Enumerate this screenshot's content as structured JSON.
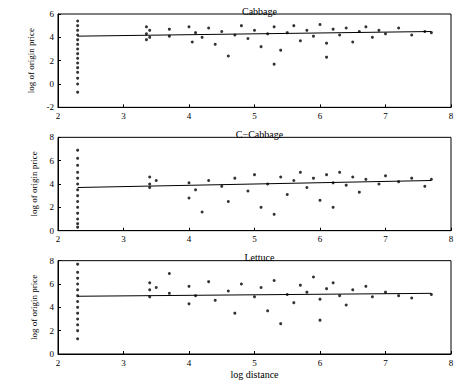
{
  "chart_data": [
    {
      "type": "scatter",
      "title": "Cabbage",
      "ylabel": "log of origin price",
      "xlim": [
        2,
        8
      ],
      "xticks": [
        2,
        3,
        4,
        5,
        6,
        7,
        8
      ],
      "ylim": [
        -2,
        6
      ],
      "yticks": [
        -2,
        0,
        2,
        4,
        6
      ],
      "grid": false,
      "series": [
        {
          "type": "scatter",
          "color": "#000000",
          "marker": "dot",
          "x": [
            2.3,
            2.3,
            2.3,
            2.3,
            2.3,
            2.3,
            2.3,
            2.3,
            2.3,
            2.3,
            2.3,
            2.3,
            2.3,
            2.3,
            2.3,
            3.35,
            3.35,
            3.35,
            3.4,
            3.4,
            3.7,
            3.7,
            4.0,
            4.05,
            4.1,
            4.2,
            4.3,
            4.4,
            4.5,
            4.6,
            4.7,
            4.8,
            4.9,
            5.0,
            5.1,
            5.2,
            5.3,
            5.4,
            5.5,
            5.6,
            5.7,
            5.8,
            5.9,
            6.0,
            6.1,
            6.2,
            6.3,
            6.4,
            6.5,
            6.6,
            6.7,
            6.8,
            6.9,
            7.0,
            7.2,
            7.4,
            7.6,
            7.7,
            5.3,
            6.1
          ],
          "values": [
            5.4,
            5.0,
            4.6,
            4.2,
            3.8,
            3.4,
            3.0,
            2.6,
            2.2,
            1.8,
            1.4,
            1.0,
            0.5,
            0.0,
            -0.7,
            4.9,
            4.3,
            3.8,
            4.6,
            4.0,
            4.7,
            4.1,
            4.9,
            3.6,
            4.4,
            4.0,
            4.8,
            3.4,
            4.5,
            2.4,
            4.2,
            5.0,
            3.9,
            4.6,
            3.2,
            4.3,
            4.9,
            2.9,
            4.4,
            5.0,
            3.7,
            4.6,
            4.1,
            5.1,
            3.5,
            4.7,
            4.2,
            4.8,
            3.6,
            4.5,
            4.9,
            4.0,
            4.6,
            4.3,
            4.8,
            4.2,
            4.5,
            4.4,
            1.7,
            2.3
          ]
        },
        {
          "type": "line",
          "color": "#000000",
          "line_style": "solid",
          "x": [
            2.3,
            7.7
          ],
          "values": [
            4.1,
            4.5
          ]
        }
      ]
    },
    {
      "type": "scatter",
      "title": "C−Cabbage",
      "ylabel": "log of origin price",
      "xlim": [
        2,
        8
      ],
      "xticks": [
        2,
        3,
        4,
        5,
        6,
        7,
        8
      ],
      "ylim": [
        0,
        8
      ],
      "yticks": [
        0,
        2,
        4,
        6,
        8
      ],
      "grid": false,
      "series": [
        {
          "type": "scatter",
          "color": "#000000",
          "marker": "dot",
          "x": [
            2.3,
            2.3,
            2.3,
            2.3,
            2.3,
            2.3,
            2.3,
            2.3,
            2.3,
            2.3,
            2.3,
            2.3,
            2.3,
            2.3,
            3.4,
            3.4,
            3.4,
            3.5,
            4.0,
            4.0,
            4.1,
            4.2,
            4.3,
            4.5,
            4.6,
            4.7,
            4.9,
            5.0,
            5.1,
            5.2,
            5.4,
            5.5,
            5.6,
            5.7,
            5.8,
            5.9,
            6.0,
            6.1,
            6.2,
            6.3,
            6.4,
            6.5,
            6.6,
            6.7,
            6.9,
            7.0,
            7.2,
            7.4,
            7.6,
            7.7,
            5.3,
            6.2
          ],
          "values": [
            6.9,
            6.2,
            5.6,
            5.0,
            4.5,
            4.0,
            3.5,
            3.0,
            2.5,
            2.0,
            1.5,
            1.0,
            0.6,
            0.3,
            4.6,
            4.0,
            3.7,
            4.3,
            2.8,
            4.1,
            3.5,
            1.6,
            4.3,
            3.8,
            2.5,
            4.5,
            3.4,
            4.8,
            2.0,
            4.0,
            4.6,
            3.1,
            4.3,
            5.0,
            3.7,
            4.5,
            2.6,
            4.8,
            4.1,
            5.0,
            3.9,
            4.6,
            3.3,
            4.4,
            4.0,
            4.7,
            4.2,
            4.5,
            3.8,
            4.4,
            1.4,
            2.0
          ]
        },
        {
          "type": "line",
          "color": "#000000",
          "line_style": "solid",
          "x": [
            2.3,
            7.7
          ],
          "values": [
            3.7,
            4.3
          ]
        }
      ]
    },
    {
      "type": "scatter",
      "title": "Lettuce",
      "xlabel": "log distance",
      "ylabel": "log of origin price",
      "xlim": [
        2,
        8
      ],
      "xticks": [
        2,
        3,
        4,
        5,
        6,
        7,
        8
      ],
      "ylim": [
        0,
        8
      ],
      "yticks": [
        0,
        2,
        4,
        6,
        8
      ],
      "grid": false,
      "series": [
        {
          "type": "scatter",
          "color": "#000000",
          "marker": "dot",
          "x": [
            2.3,
            2.3,
            2.3,
            2.3,
            2.3,
            2.3,
            2.3,
            2.3,
            2.3,
            2.3,
            2.3,
            2.3,
            2.3,
            3.4,
            3.4,
            3.4,
            3.5,
            3.7,
            3.7,
            4.0,
            4.0,
            4.1,
            4.3,
            4.4,
            4.6,
            4.7,
            4.8,
            5.0,
            5.1,
            5.2,
            5.3,
            5.5,
            5.6,
            5.7,
            5.8,
            5.9,
            6.0,
            6.1,
            6.2,
            6.3,
            6.4,
            6.5,
            6.7,
            6.8,
            7.0,
            7.2,
            7.4,
            7.7,
            5.4,
            6.0
          ],
          "values": [
            7.7,
            7.0,
            6.5,
            6.0,
            5.5,
            5.0,
            4.5,
            4.0,
            3.5,
            3.0,
            2.5,
            2.0,
            1.3,
            6.1,
            5.5,
            4.9,
            5.7,
            6.9,
            5.2,
            5.8,
            4.3,
            5.0,
            6.2,
            4.6,
            5.4,
            3.5,
            6.0,
            4.9,
            5.7,
            3.7,
            6.3,
            5.1,
            4.4,
            5.9,
            5.3,
            6.6,
            4.7,
            5.6,
            6.1,
            5.0,
            4.2,
            5.5,
            5.8,
            4.9,
            5.3,
            5.0,
            4.8,
            5.1,
            2.6,
            2.9
          ]
        },
        {
          "type": "line",
          "color": "#000000",
          "line_style": "solid",
          "x": [
            2.3,
            7.7
          ],
          "values": [
            4.95,
            5.2
          ]
        }
      ]
    }
  ]
}
